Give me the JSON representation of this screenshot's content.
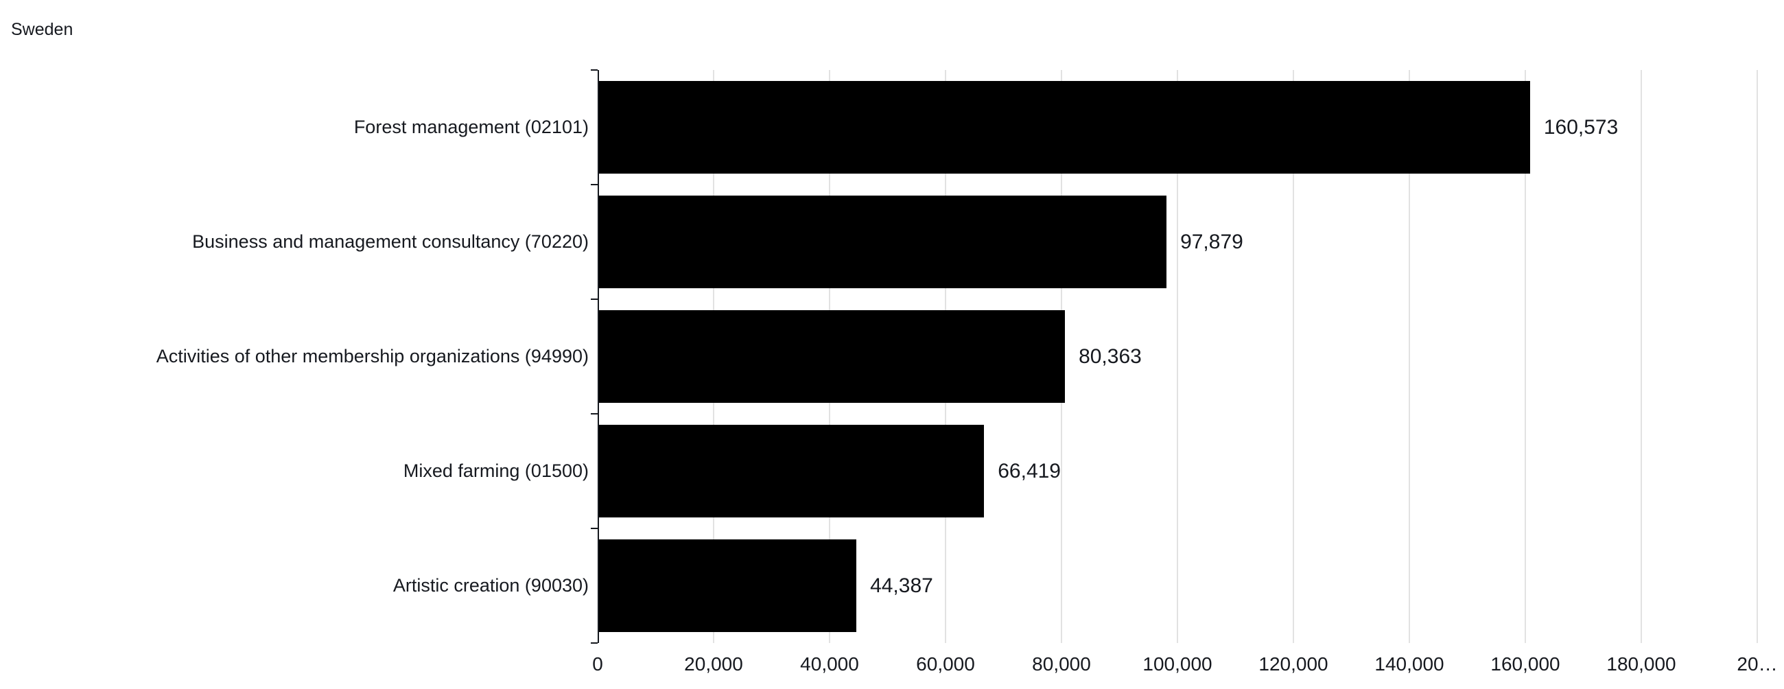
{
  "title": "Sweden",
  "chart_data": {
    "type": "bar",
    "orientation": "horizontal",
    "title": "Sweden",
    "categories": [
      "Forest management (02101)",
      "Business and management consultancy (70220)",
      "Activities of other membership organizations (94990)",
      "Mixed farming (01500)",
      "Artistic creation (90030)"
    ],
    "values": [
      160573,
      97879,
      80363,
      66419,
      44387
    ],
    "value_labels": [
      "160,573",
      "97,879",
      "80,363",
      "66,419",
      "44,387"
    ],
    "xlabel": "",
    "ylabel": "",
    "xlim": [
      0,
      200000
    ],
    "x_tick_interval": 20000,
    "x_tick_labels": [
      "0",
      "20,000",
      "40,000",
      "60,000",
      "80,000",
      "100,000",
      "120,000",
      "140,000",
      "160,000",
      "180,000",
      "20…"
    ],
    "grid": "vertical-only",
    "legend": "none",
    "colors": {
      "bar": "#000000",
      "text": "#16191f",
      "axis": "#16191f",
      "gridline": "#e2e2e2",
      "background": "#ffffff"
    }
  }
}
